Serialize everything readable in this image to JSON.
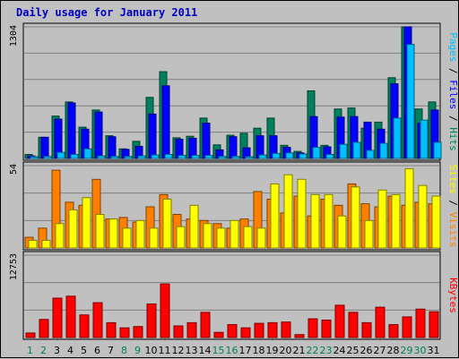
{
  "title": "Daily usage for January 2011",
  "chart_data": {
    "type": "bar",
    "title": "Daily usage for January 2011",
    "categories": [
      "1",
      "2",
      "3",
      "4",
      "5",
      "6",
      "7",
      "8",
      "9",
      "10",
      "11",
      "12",
      "13",
      "14",
      "15",
      "16",
      "17",
      "18",
      "19",
      "20",
      "21",
      "22",
      "23",
      "24",
      "25",
      "26",
      "27",
      "28",
      "29",
      "30",
      "31"
    ],
    "weekend_days": [
      "1",
      "2",
      "8",
      "9",
      "15",
      "16",
      "22",
      "23",
      "29",
      "30"
    ],
    "panels": [
      {
        "id": "hits",
        "ymax_label": "1304",
        "ymax": 1304,
        "side_label": {
          "parts": [
            "Pages",
            "Files",
            "Hits"
          ],
          "separator": " / "
        },
        "series": [
          {
            "name": "Hits",
            "color": "#00805c",
            "values": [
              40,
              210,
              420,
              560,
              310,
              480,
              225,
              95,
              170,
              605,
              860,
              205,
              220,
              400,
              135,
              230,
              250,
              300,
              400,
              130,
              70,
              670,
              130,
              490,
              500,
              300,
              360,
              800,
              1304,
              490,
              560
            ]
          },
          {
            "name": "Files",
            "color": "#0000ff",
            "values": [
              25,
              210,
              390,
              550,
              290,
              460,
              215,
              90,
              120,
              440,
              720,
              190,
              200,
              350,
              85,
              215,
              105,
              225,
              225,
              110,
              55,
              415,
              115,
              410,
              415,
              360,
              290,
              740,
              1304,
              350,
              480
            ]
          },
          {
            "name": "Pages",
            "color": "#00c0ff",
            "values": [
              10,
              20,
              60,
              40,
              95,
              25,
              20,
              20,
              25,
              35,
              40,
              30,
              30,
              30,
              20,
              20,
              15,
              35,
              50,
              55,
              45,
              110,
              40,
              140,
              160,
              80,
              150,
              400,
              1130,
              380,
              160
            ]
          }
        ]
      },
      {
        "id": "visits",
        "ymax_label": "54",
        "ymax": 54,
        "side_label": {
          "parts": [
            "Sites",
            "Visits"
          ],
          "separator": " / "
        },
        "series": [
          {
            "name": "Visits",
            "color": "#ff8000",
            "values": [
              7,
              13,
              51,
              30,
              28,
              45,
              19,
              20,
              17,
              27,
              35,
              22,
              19,
              18,
              16,
              13,
              19,
              37,
              32,
              23,
              34,
              21,
              32,
              28,
              42,
              29,
              27,
              34,
              28,
              30,
              29
            ]
          },
          {
            "name": "Sites",
            "color": "#ffff00",
            "values": [
              5,
              5,
              16,
              25,
              33,
              22,
              19,
              13,
              18,
              13,
              32,
              14,
              28,
              16,
              13,
              18,
              14,
              13,
              42,
              48,
              45,
              35,
              35,
              21,
              40,
              18,
              38,
              35,
              52,
              41,
              34
            ]
          }
        ]
      },
      {
        "id": "kbytes",
        "ymax_label": "12753",
        "ymax": 12753,
        "side_label": {
          "parts": [
            "KBytes"
          ],
          "separator": ""
        },
        "series": [
          {
            "name": "KBytes",
            "color": "#ff0000",
            "values": [
              700,
              2800,
              6100,
              6400,
              3500,
              5400,
              2300,
              1500,
              1700,
              5200,
              8300,
              1800,
              2300,
              3900,
              800,
              2000,
              1500,
              2200,
              2300,
              2400,
              450,
              2900,
              2700,
              5000,
              3900,
              2300,
              4700,
              2000,
              3200,
              4400,
              4000
            ]
          }
        ]
      }
    ],
    "grid": true,
    "xlabel": "",
    "ylabel": ""
  }
}
